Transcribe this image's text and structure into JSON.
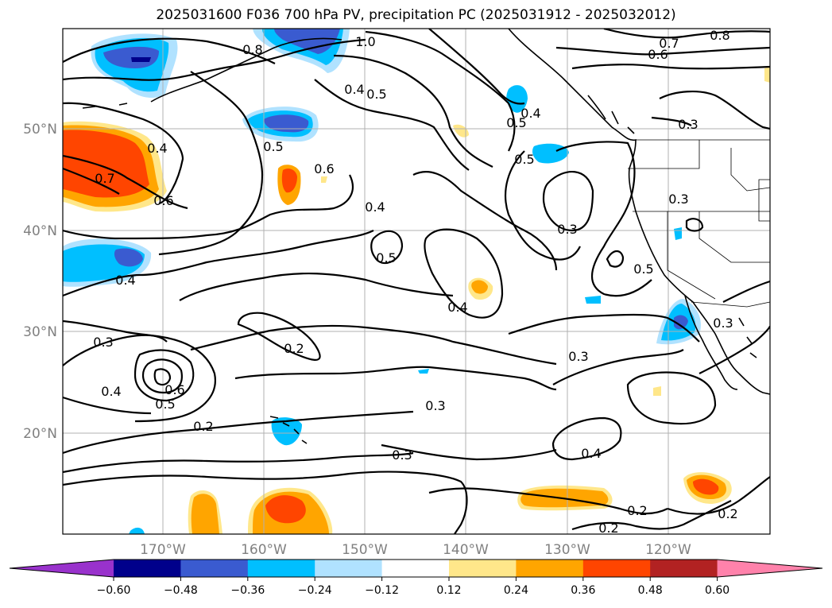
{
  "title": "2025031600 F036 700 hPa PV, precipitation PC (2025031912 - 2025032012)",
  "map": {
    "lat_ticks": [
      "50°N",
      "40°N",
      "30°N",
      "20°N"
    ],
    "lon_ticks": [
      "170°W",
      "160°W",
      "150°W",
      "140°W",
      "130°W",
      "120°W"
    ],
    "contour_labels": [
      "0.8",
      "1.0",
      "0.7",
      "0.6",
      "0.8",
      "0.4",
      "0.5",
      "0.4",
      "0.5",
      "0.3",
      "0.4",
      "0.7",
      "0.6",
      "0.5",
      "0.6",
      "0.4",
      "0.5",
      "0.3",
      "0.5",
      "0.3",
      "0.4",
      "0.4",
      "0.3",
      "0.2",
      "0.3",
      "0.4",
      "0.5",
      "0.6",
      "0.3",
      "0.2",
      "0.3",
      "0.4",
      "0.2",
      "0.2",
      "0.2",
      "0.5",
      "0.3"
    ]
  },
  "colorbar": {
    "colors": [
      "#9932CC",
      "#00008B",
      "#3A5BD0",
      "#00BFFF",
      "#B0E2FF",
      "#FFFFFF",
      "#FFE78A",
      "#FFA500",
      "#FF4500",
      "#B22222",
      "#FF82AB"
    ],
    "tick_labels": [
      "−0.60",
      "−0.48",
      "−0.36",
      "−0.24",
      "−0.12",
      "0.12",
      "0.24",
      "0.36",
      "0.48",
      "0.60"
    ]
  }
}
